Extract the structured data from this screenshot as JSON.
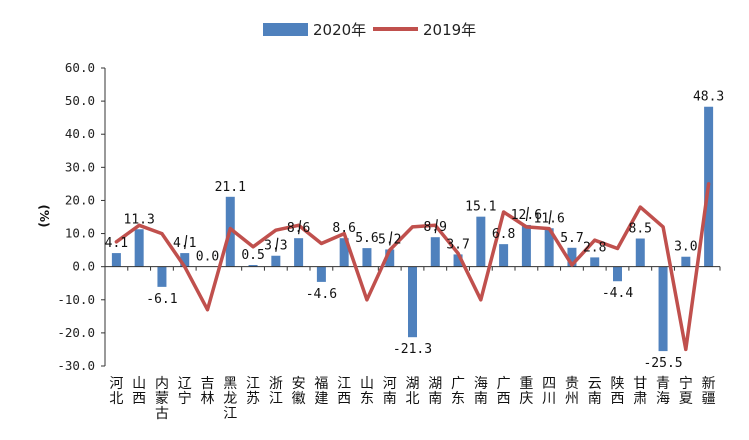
{
  "chart_data": {
    "type": "bar+line",
    "ylabel": "(%)",
    "ylim": [
      -30,
      60
    ],
    "yticks": [
      "60.0",
      "50.0",
      "40.0",
      "30.0",
      "20.0",
      "10.0",
      "0.0",
      "-10.0",
      "-20.0",
      "-30.0"
    ],
    "ytick_values": [
      60,
      50,
      40,
      30,
      20,
      10,
      0,
      -10,
      -20,
      -30
    ],
    "legend_position": "top-center",
    "categories": [
      "河北",
      "山西",
      "内蒙古",
      "辽宁",
      "吉林",
      "黑龙江",
      "江苏",
      "浙江",
      "安徽",
      "福建",
      "江西",
      "山东",
      "河南",
      "湖北",
      "湖南",
      "广东",
      "海南",
      "广西",
      "重庆",
      "四川",
      "贵州",
      "云南",
      "陕西",
      "甘肃",
      "青海",
      "宁夏",
      "新疆"
    ],
    "series": [
      {
        "name": "2020年",
        "type": "bar",
        "color": "#4f81bd",
        "values": [
          4.1,
          11.3,
          -6.1,
          4.1,
          0.0,
          21.1,
          0.5,
          3.3,
          8.6,
          -4.6,
          8.6,
          5.6,
          5.2,
          -21.3,
          8.9,
          3.7,
          15.1,
          6.8,
          12.6,
          11.6,
          5.7,
          2.8,
          -4.4,
          8.5,
          -25.5,
          3.0,
          48.3
        ],
        "labels": [
          "4.1",
          "11.3",
          "-6.1",
          "4.1",
          "0.0",
          "21.1",
          "0.5",
          "3.3",
          "8.6",
          "-4.6",
          "8.6",
          "5.6",
          "5.2",
          "-21.3",
          "8.9",
          "3.7",
          "15.1",
          "6.8",
          "12.6",
          "11.6",
          "5.7",
          "2.8",
          "-4.4",
          "8.5",
          "-25.5",
          "3.0",
          "48.3"
        ]
      },
      {
        "name": "2019年",
        "type": "line",
        "color": "#c0504d",
        "values": [
          7.5,
          12.5,
          10.0,
          0.0,
          -13.0,
          11.5,
          6.0,
          11.0,
          12.5,
          7.0,
          10.0,
          -10.0,
          5.0,
          12.0,
          12.5,
          4.0,
          -10.0,
          16.5,
          12.0,
          11.5,
          0.5,
          8.0,
          5.5,
          18.0,
          12.0,
          -25.0,
          25.0
        ]
      }
    ]
  }
}
